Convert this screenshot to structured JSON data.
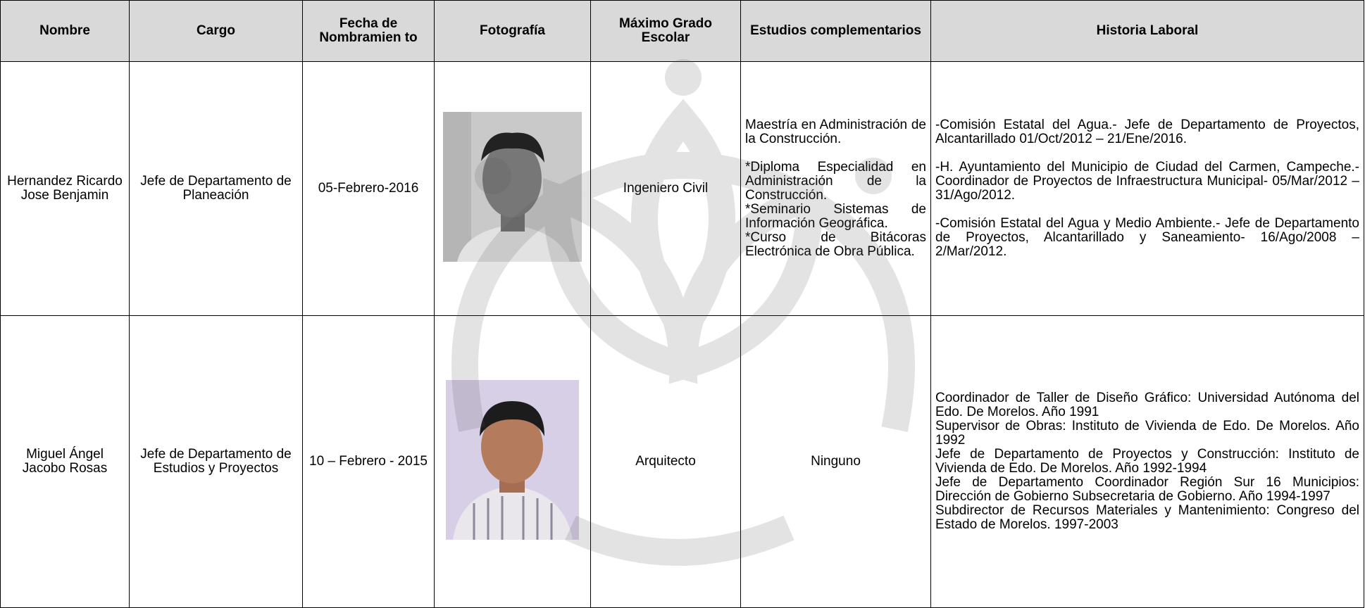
{
  "table": {
    "header": [
      "Nombre",
      "Cargo",
      "Fecha de Nombramien to",
      "Fotografía",
      "Máximo Grado Escolar",
      "Estudios complementarios",
      "Historia Laboral"
    ],
    "rows": [
      {
        "nombre": "Hernandez Ricardo Jose Benjamin",
        "cargo": "Jefe de Departamento de Planeación",
        "fecha": "05-Febrero-2016",
        "grado": "Ingeniero Civil",
        "estudios": [
          "Maestría en Administración de la Construcción.",
          "*Diploma Especialidad en Administración de la Construcción.",
          "*Seminario Sistemas de Información Geográfica.",
          "*Curso de Bitácoras Electrónica de Obra Pública."
        ],
        "historia": [
          "-Comisión Estatal del Agua.- Jefe de Departamento de Proyectos, Alcantarillado 01/Oct/2012 – 21/Ene/2016.",
          "-H. Ayuntamiento del Municipio de Ciudad del Carmen, Campeche.- Coordinador de Proyectos de Infraestructura Municipal- 05/Mar/2012 – 31/Ago/2012.",
          "-Comisión Estatal del Agua y Medio Ambiente.- Jefe de Departamento de Proyectos, Alcantarillado y Saneamiento- 16/Ago/2008 – 2/Mar/2012."
        ]
      },
      {
        "nombre": "Miguel Ángel Jacobo Rosas",
        "cargo": "Jefe de Departamento de Estudios y Proyectos",
        "fecha": "10 – Febrero - 2015",
        "grado": "Arquitecto",
        "estudios": [
          "Ninguno"
        ],
        "historia": [
          "Coordinador de Taller de Diseño Gráfico: Universidad Autónoma del Edo. De Morelos. Año 1991",
          "Supervisor de Obras: Instituto de Vivienda de Edo. De Morelos. Año 1992",
          "Jefe de Departamento de Proyectos y Construcción: Instituto de Vivienda de Edo. De Morelos. Año 1992-1994",
          "Jefe de Departamento Coordinador Región Sur 16 Municipios: Dirección de Gobierno Subsecretaria de Gobierno. Año 1994-1997",
          "Subdirector de Recursos Materiales y Mantenimiento: Congreso del Estado de Morelos. 1997-2003"
        ]
      }
    ]
  }
}
